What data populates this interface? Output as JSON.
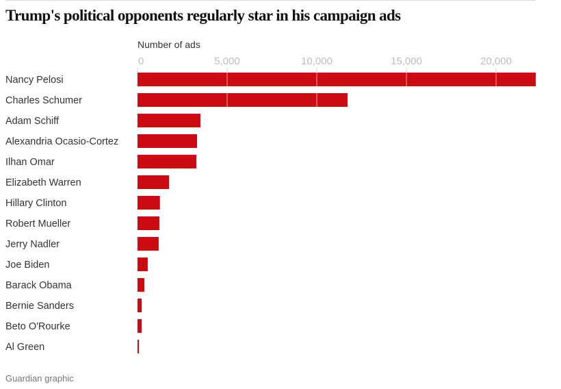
{
  "header": {
    "title": "Trump's political opponents regularly star in his campaign ads"
  },
  "footer": {
    "source": "Guardian graphic"
  },
  "colors": {
    "bar": "#cc0a11",
    "gridline": "#f2a0a3",
    "tick_text": "#bdbdbd",
    "label_text": "#333333"
  },
  "chart_data": {
    "type": "bar",
    "orientation": "horizontal",
    "title": "Trump's political opponents regularly star in his campaign ads",
    "xlabel": "Number of ads",
    "ylabel": "",
    "xlim": [
      0,
      22210
    ],
    "xticks": [
      0,
      5000,
      10000,
      15000,
      20000
    ],
    "xtick_labels": [
      "0",
      "5,000",
      "10,000",
      "15,000",
      "20,000"
    ],
    "axis_position": "top",
    "grid": true,
    "legend": "none",
    "categories": [
      "Nancy Pelosi",
      "Charles Schumer",
      "Adam Schiff",
      "Alexandria Ocasio-Cortez",
      "Ilhan Omar",
      "Elizabeth Warren",
      "Hillary Clinton",
      "Robert Mueller",
      "Jerry Nadler",
      "Joe Biden",
      "Barack Obama",
      "Bernie Sanders",
      "Beto O'Rourke",
      "Al Green"
    ],
    "values": [
      22210,
      11720,
      3510,
      3320,
      3280,
      1760,
      1250,
      1220,
      1180,
      570,
      380,
      230,
      230,
      80
    ],
    "source": "Guardian graphic"
  }
}
